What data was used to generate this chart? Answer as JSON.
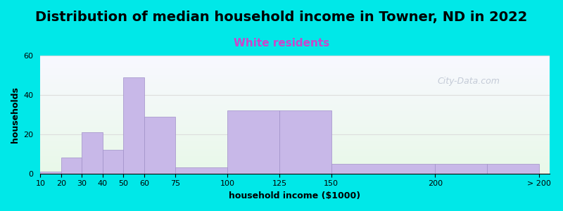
{
  "title": "Distribution of median household income in Towner, ND in 2022",
  "subtitle": "White residents",
  "xlabel": "household income ($1000)",
  "ylabel": "households",
  "bar_labels": [
    "10",
    "20",
    "30",
    "40",
    "50",
    "60",
    "75",
    "100",
    "125",
    "150",
    "200",
    "> 200"
  ],
  "bar_values": [
    1,
    8,
    21,
    12,
    49,
    29,
    3,
    32,
    32,
    5,
    5,
    5
  ],
  "bar_color": "#c8b8e8",
  "bar_edge_color": "#a090c8",
  "ylim": [
    0,
    60
  ],
  "yticks": [
    0,
    20,
    40,
    60
  ],
  "bg_color": "#00e8e8",
  "plot_bg_top": "#f8f8ff",
  "plot_bg_bottom": "#e8f8e8",
  "title_fontsize": 14,
  "subtitle_color": "#cc44cc",
  "subtitle_fontsize": 11,
  "watermark": "City-Data.com",
  "grid_color": "#dddddd"
}
